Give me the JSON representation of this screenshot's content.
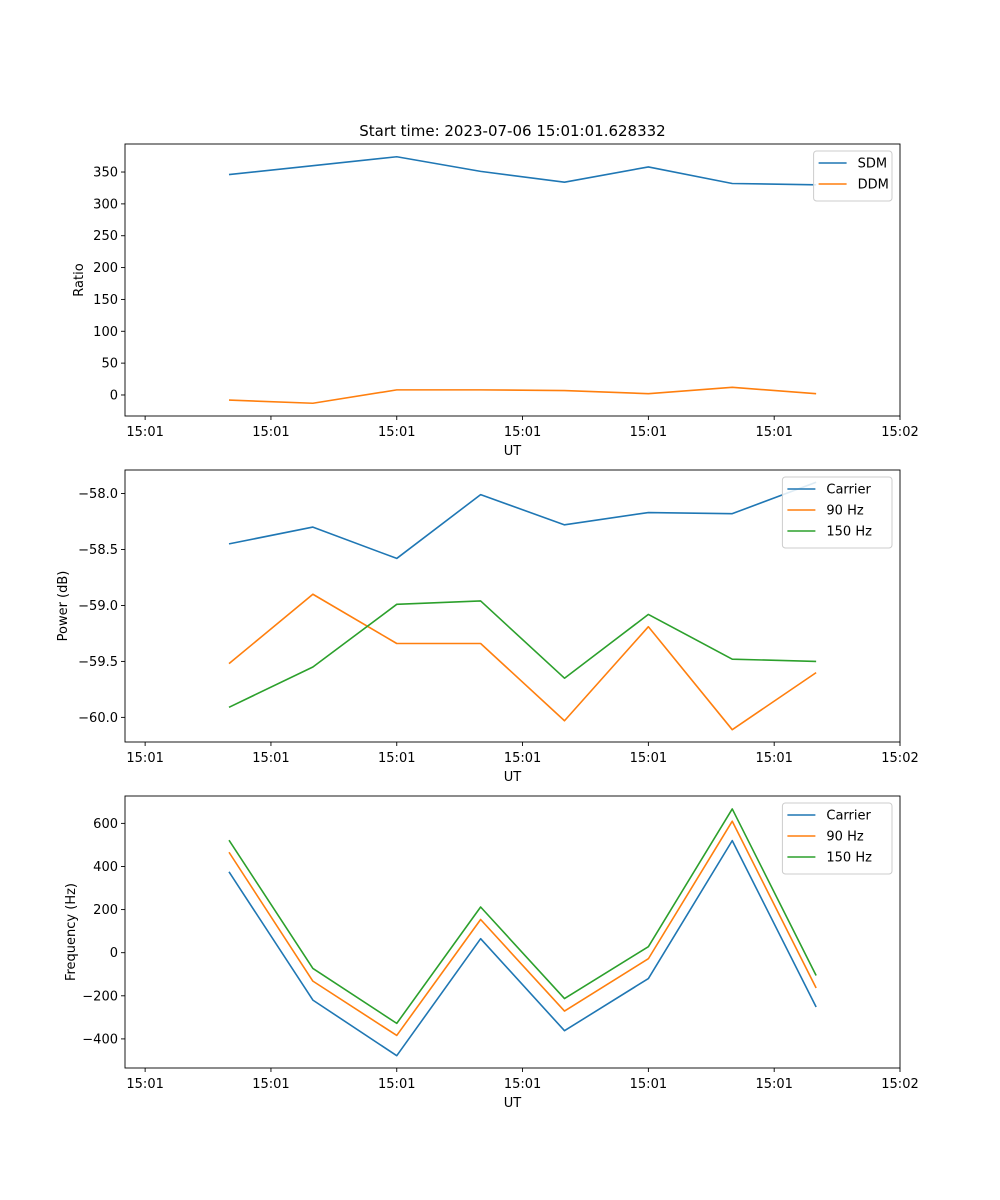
{
  "figure_title": "Start time: 2023-07-06 15:01:01.628332",
  "colors": {
    "c0": "#1f77b4",
    "c1": "#ff7f0e",
    "c2": "#2ca02c"
  },
  "chart_data": [
    {
      "type": "line",
      "title": "Start time: 2023-07-06 15:01:01.628332",
      "xlabel": "UT",
      "ylabel": "Ratio",
      "x": [
        0.5,
        1.0,
        1.5,
        2.0,
        2.5,
        3.0,
        3.5,
        4.0
      ],
      "xlim": [
        -0.12,
        4.5
      ],
      "xticks": [
        0,
        0.75,
        1.5,
        2.25,
        3.0,
        3.75,
        4.5
      ],
      "xtick_labels": [
        "15:01",
        "15:01",
        "15:01",
        "15:01",
        "15:01",
        "15:01",
        "15:02"
      ],
      "ylim": [
        -33,
        394
      ],
      "yticks": [
        0,
        50,
        100,
        150,
        200,
        250,
        300,
        350
      ],
      "ytick_labels": [
        "0",
        "50",
        "100",
        "150",
        "200",
        "250",
        "300",
        "350"
      ],
      "legend_position": "top-right",
      "series": [
        {
          "name": "SDM",
          "color": "#1f77b4",
          "values": [
            346,
            360,
            374,
            351,
            334,
            358,
            332,
            330
          ]
        },
        {
          "name": "DDM",
          "color": "#ff7f0e",
          "values": [
            -8,
            -13,
            8,
            8,
            7,
            2,
            12,
            2
          ]
        }
      ]
    },
    {
      "type": "line",
      "title": "",
      "xlabel": "UT",
      "ylabel": "Power (dB)",
      "x": [
        0.5,
        1.0,
        1.5,
        2.0,
        2.5,
        3.0,
        3.5,
        4.0
      ],
      "xlim": [
        -0.12,
        4.5
      ],
      "xticks": [
        0,
        0.75,
        1.5,
        2.25,
        3.0,
        3.75,
        4.5
      ],
      "xtick_labels": [
        "15:01",
        "15:01",
        "15:01",
        "15:01",
        "15:01",
        "15:01",
        "15:02"
      ],
      "ylim": [
        -60.22,
        -57.79
      ],
      "yticks": [
        -60.0,
        -59.5,
        -59.0,
        -58.5,
        -58.0
      ],
      "ytick_labels": [
        "−60.0",
        "−59.5",
        "−59.0",
        "−58.5",
        "−58.0"
      ],
      "legend_position": "top-right",
      "series": [
        {
          "name": "Carrier",
          "color": "#1f77b4",
          "values": [
            -58.45,
            -58.3,
            -58.58,
            -58.01,
            -58.28,
            -58.17,
            -58.18,
            -57.9
          ]
        },
        {
          "name": "90 Hz",
          "color": "#ff7f0e",
          "values": [
            -59.52,
            -58.9,
            -59.34,
            -59.34,
            -60.03,
            -59.19,
            -60.11,
            -59.6
          ]
        },
        {
          "name": "150 Hz",
          "color": "#2ca02c",
          "values": [
            -59.91,
            -59.55,
            -58.99,
            -58.96,
            -59.65,
            -59.08,
            -59.48,
            -59.5
          ]
        }
      ]
    },
    {
      "type": "line",
      "title": "",
      "xlabel": "UT",
      "ylabel": "Frequency (Hz)",
      "x": [
        0.5,
        1.0,
        1.5,
        2.0,
        2.5,
        3.0,
        3.5,
        4.0
      ],
      "xlim": [
        -0.12,
        4.5
      ],
      "xticks": [
        0,
        0.75,
        1.5,
        2.25,
        3.0,
        3.75,
        4.5
      ],
      "xtick_labels": [
        "15:01",
        "15:01",
        "15:01",
        "15:01",
        "15:01",
        "15:01",
        "15:02"
      ],
      "ylim": [
        -535,
        727
      ],
      "yticks": [
        -400,
        -200,
        0,
        200,
        400,
        600
      ],
      "ytick_labels": [
        "−400",
        "−200",
        "0",
        "200",
        "400",
        "600"
      ],
      "legend_position": "top-right",
      "series": [
        {
          "name": "Carrier",
          "color": "#1f77b4",
          "values": [
            375,
            -220,
            -478,
            65,
            -362,
            -120,
            520,
            -252
          ]
        },
        {
          "name": "90 Hz",
          "color": "#ff7f0e",
          "values": [
            466,
            -132,
            -384,
            154,
            -271,
            -28,
            610,
            -164
          ]
        },
        {
          "name": "150 Hz",
          "color": "#2ca02c",
          "values": [
            522,
            -73,
            -328,
            212,
            -213,
            28,
            667,
            -106
          ]
        }
      ]
    }
  ]
}
